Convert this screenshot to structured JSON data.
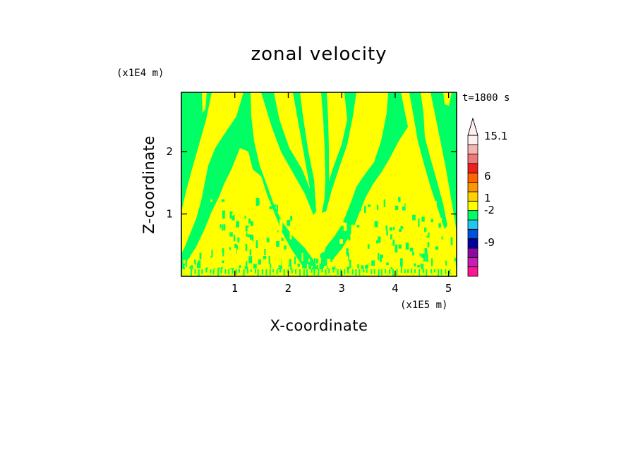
{
  "chart_data": {
    "type": "heatmap",
    "title": "zonal velocity",
    "xlabel": "X-coordinate",
    "ylabel": "Z-coordinate",
    "x_scale_label": "(x1E5 m)",
    "y_scale_label": "(x1E4 m)",
    "time_label": "t=1800 s",
    "xlim": [
      0,
      5.15
    ],
    "ylim": [
      0,
      2.95
    ],
    "x_ticks": [
      1,
      2,
      3,
      4,
      5
    ],
    "y_ticks": [
      1,
      2
    ],
    "colorbar": {
      "labels": [
        "15.1",
        "6",
        "1",
        "-2",
        "-9"
      ],
      "colors": [
        "#ff1493",
        "#c81cb4",
        "#8c0aa0",
        "#0000a0",
        "#0050dc",
        "#1ec8f0",
        "#00ff64",
        "#ffff00",
        "#ffd200",
        "#ff9600",
        "#ff6400",
        "#f01e1e",
        "#f07878",
        "#f4b4b4",
        "#fff0f0"
      ]
    },
    "field": {
      "background": "#00ff64",
      "positive": "#ffff00"
    }
  }
}
